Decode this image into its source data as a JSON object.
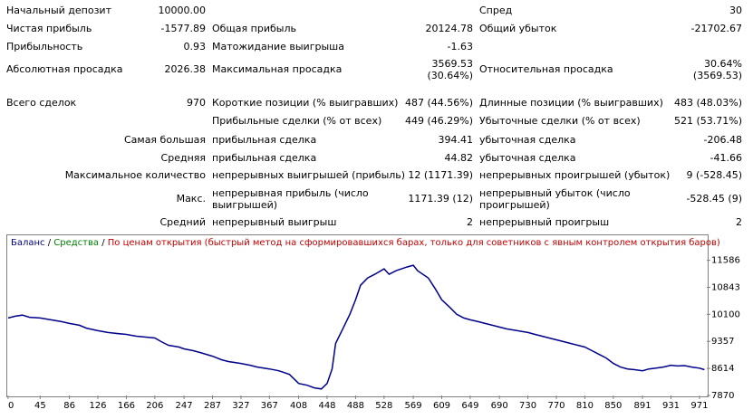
{
  "report": {
    "initial_deposit": {
      "label": "Начальный депозит",
      "value": "10000.00"
    },
    "spread": {
      "label": "Спред",
      "value": "30"
    },
    "net_profit": {
      "label": "Чистая прибыль",
      "value": "-1577.89"
    },
    "gross_profit": {
      "label": "Общая прибыль",
      "value": "20124.78"
    },
    "gross_loss": {
      "label": "Общий убыток",
      "value": "-21702.67"
    },
    "profit_factor": {
      "label": "Прибыльность",
      "value": "0.93"
    },
    "expected_payoff": {
      "label": "Матожидание выигрыша",
      "value": "-1.63"
    },
    "abs_drawdown": {
      "label": "Абсолютная просадка",
      "value": "2026.38"
    },
    "max_drawdown": {
      "label": "Максимальная просадка",
      "value1": "3569.53",
      "value2": "(30.64%)"
    },
    "rel_drawdown": {
      "label": "Относительная просадка",
      "value1": "30.64%",
      "value2": "(3569.53)"
    },
    "total_trades": {
      "label": "Всего сделок",
      "value": "970"
    },
    "short_positions": {
      "label": "Короткие позиции (% выигравших)",
      "value": "487 (44.56%)"
    },
    "long_positions": {
      "label": "Длинные позиции (% выигравших)",
      "value": "483 (48.03%)"
    },
    "profit_trades": {
      "label": "Прибыльные сделки (% от всех)",
      "value": "449 (46.29%)"
    },
    "loss_trades": {
      "label": "Убыточные сделки (% от всех)",
      "value": "521 (53.71%)"
    },
    "largest": {
      "label": "Самая большая",
      "profit_label": "прибыльная сделка",
      "profit_value": "394.41",
      "loss_label": "убыточная сделка",
      "loss_value": "-206.48"
    },
    "average": {
      "label": "Средняя",
      "profit_label": "прибыльная сделка",
      "profit_value": "44.82",
      "loss_label": "убыточная сделка",
      "loss_value": "-41.66"
    },
    "max_consecutive": {
      "label": "Максимальное количество",
      "wins_label": "непрерывных выигрышей (прибыль)",
      "wins_value": "12 (1171.39)",
      "losses_label": "непрерывных проигрышей (убыток)",
      "losses_value": "9 (-528.45)"
    },
    "max_consecutive_amount": {
      "label": "Макс.",
      "profit_label_1": "непрерывная прибыль (число",
      "profit_label_2": "выигрышей)",
      "profit_value": "1171.39 (12)",
      "loss_label_1": "непрерывный убыток (число",
      "loss_label_2": "проигрышей)",
      "loss_value": "-528.45 (9)"
    },
    "avg_consecutive": {
      "label": "Средний",
      "wins_label": "непрерывный выигрыш",
      "wins_value": "2",
      "losses_label": "непрерывный проигрыш",
      "losses_value": "2"
    }
  },
  "legend": {
    "balance": "Баланс",
    "sep1": " / ",
    "equity": "Средства",
    "sep2": " / ",
    "model": "По ценам открытия (быстрый метод на сформировавшихся барах, только для советников с явным контролем открытия баров)"
  },
  "colors": {
    "balance": "#000080",
    "equity": "#008000",
    "model": "#c00000",
    "line": "#00008b",
    "axis_text": "#000000",
    "frame": "#808080"
  },
  "chart_data": {
    "type": "line",
    "xlabel": "",
    "ylabel": "",
    "xlim": [
      0,
      980
    ],
    "ylim": [
      7870,
      11800
    ],
    "x_ticks": [
      "0",
      "45",
      "86",
      "126",
      "166",
      "206",
      "247",
      "287",
      "327",
      "367",
      "408",
      "448",
      "488",
      "528",
      "569",
      "609",
      "649",
      "690",
      "730",
      "770",
      "810",
      "850",
      "891",
      "931",
      "971"
    ],
    "y_ticks": [
      "11586",
      "10843",
      "10100",
      "9357",
      "8614",
      "7870"
    ],
    "series": [
      {
        "name": "Баланс",
        "x": [
          0,
          10,
          20,
          30,
          45,
          60,
          75,
          86,
          100,
          110,
          126,
          140,
          150,
          166,
          180,
          190,
          206,
          215,
          225,
          240,
          247,
          260,
          270,
          287,
          300,
          310,
          327,
          340,
          350,
          367,
          380,
          395,
          408,
          420,
          430,
          440,
          448,
          455,
          460,
          470,
          480,
          488,
          495,
          505,
          515,
          528,
          535,
          545,
          560,
          569,
          575,
          590,
          600,
          609,
          620,
          630,
          640,
          649,
          660,
          670,
          680,
          690,
          700,
          715,
          730,
          740,
          750,
          760,
          770,
          780,
          790,
          800,
          810,
          820,
          830,
          840,
          850,
          860,
          870,
          880,
          891,
          900,
          910,
          920,
          931,
          940,
          950,
          960,
          971,
          978
        ],
        "y": [
          10000,
          10050,
          10080,
          10020,
          10000,
          9950,
          9900,
          9850,
          9800,
          9720,
          9650,
          9600,
          9580,
          9550,
          9500,
          9480,
          9450,
          9350,
          9250,
          9200,
          9150,
          9100,
          9050,
          8950,
          8850,
          8800,
          8750,
          8700,
          8650,
          8600,
          8550,
          8450,
          8200,
          8150,
          8080,
          8050,
          8200,
          8600,
          9300,
          9700,
          10100,
          10500,
          10900,
          11100,
          11200,
          11350,
          11200,
          11300,
          11400,
          11450,
          11300,
          11100,
          10800,
          10500,
          10300,
          10100,
          10000,
          9950,
          9900,
          9850,
          9800,
          9750,
          9700,
          9650,
          9600,
          9550,
          9500,
          9450,
          9400,
          9350,
          9300,
          9250,
          9200,
          9100,
          9000,
          8900,
          8750,
          8650,
          8600,
          8580,
          8550,
          8600,
          8620,
          8650,
          8700,
          8680,
          8690,
          8650,
          8620,
          8580
        ]
      }
    ]
  }
}
